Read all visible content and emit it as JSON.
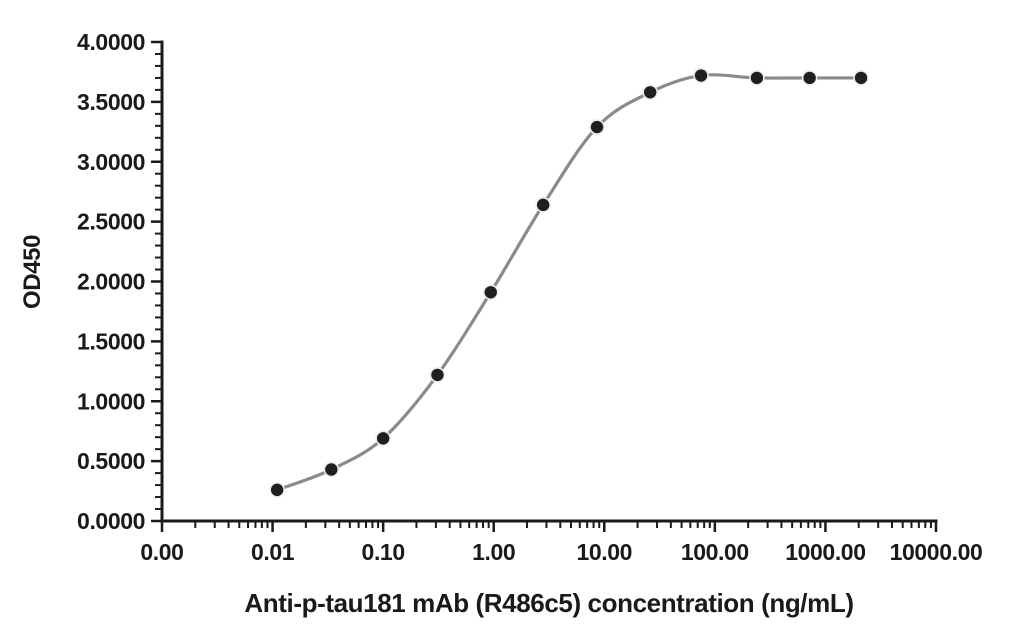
{
  "chart_data": {
    "type": "line",
    "subtype": "scatter-with-smooth-line",
    "title": "",
    "xlabel": "Anti-p-tau181 mAb (R486c5) concentration (ng/mL)",
    "ylabel": "OD450",
    "x_scale": "log10",
    "x_range": [
      0.001,
      10000
    ],
    "y_range": [
      0,
      4
    ],
    "grid": false,
    "legend_position": "none",
    "x_ticks": [
      {
        "value": 0.001,
        "label": "0.00"
      },
      {
        "value": 0.01,
        "label": "0.01"
      },
      {
        "value": 0.1,
        "label": "0.10"
      },
      {
        "value": 1,
        "label": "1.00"
      },
      {
        "value": 10,
        "label": "10.00"
      },
      {
        "value": 100,
        "label": "100.00"
      },
      {
        "value": 1000,
        "label": "1000.00"
      },
      {
        "value": 10000,
        "label": "10000.00"
      }
    ],
    "y_ticks": [
      {
        "value": 0.0,
        "label": "0.0000"
      },
      {
        "value": 0.5,
        "label": "0.5000"
      },
      {
        "value": 1.0,
        "label": "1.0000"
      },
      {
        "value": 1.5,
        "label": "1.5000"
      },
      {
        "value": 2.0,
        "label": "2.0000"
      },
      {
        "value": 2.5,
        "label": "2.5000"
      },
      {
        "value": 3.0,
        "label": "3.0000"
      },
      {
        "value": 3.5,
        "label": "3.5000"
      },
      {
        "value": 4.0,
        "label": "4.0000"
      }
    ],
    "y_minor_step": 0.1,
    "series": [
      {
        "name": "Anti-p-tau181 mAb (R486c5)",
        "marker": "circle",
        "x": [
          0.011,
          0.034,
          0.1,
          0.31,
          0.94,
          2.8,
          8.6,
          26,
          75,
          240,
          720,
          2100
        ],
        "y": [
          0.26,
          0.43,
          0.69,
          1.22,
          1.91,
          2.64,
          3.29,
          3.58,
          3.72,
          3.7,
          3.7,
          3.7
        ]
      }
    ],
    "colors": {
      "line": "#8a8a8a",
      "marker_fill": "#1f1f1f",
      "marker_halo": "#ececec",
      "axis": "#1a1a1a",
      "text": "#1a1a1a"
    }
  }
}
